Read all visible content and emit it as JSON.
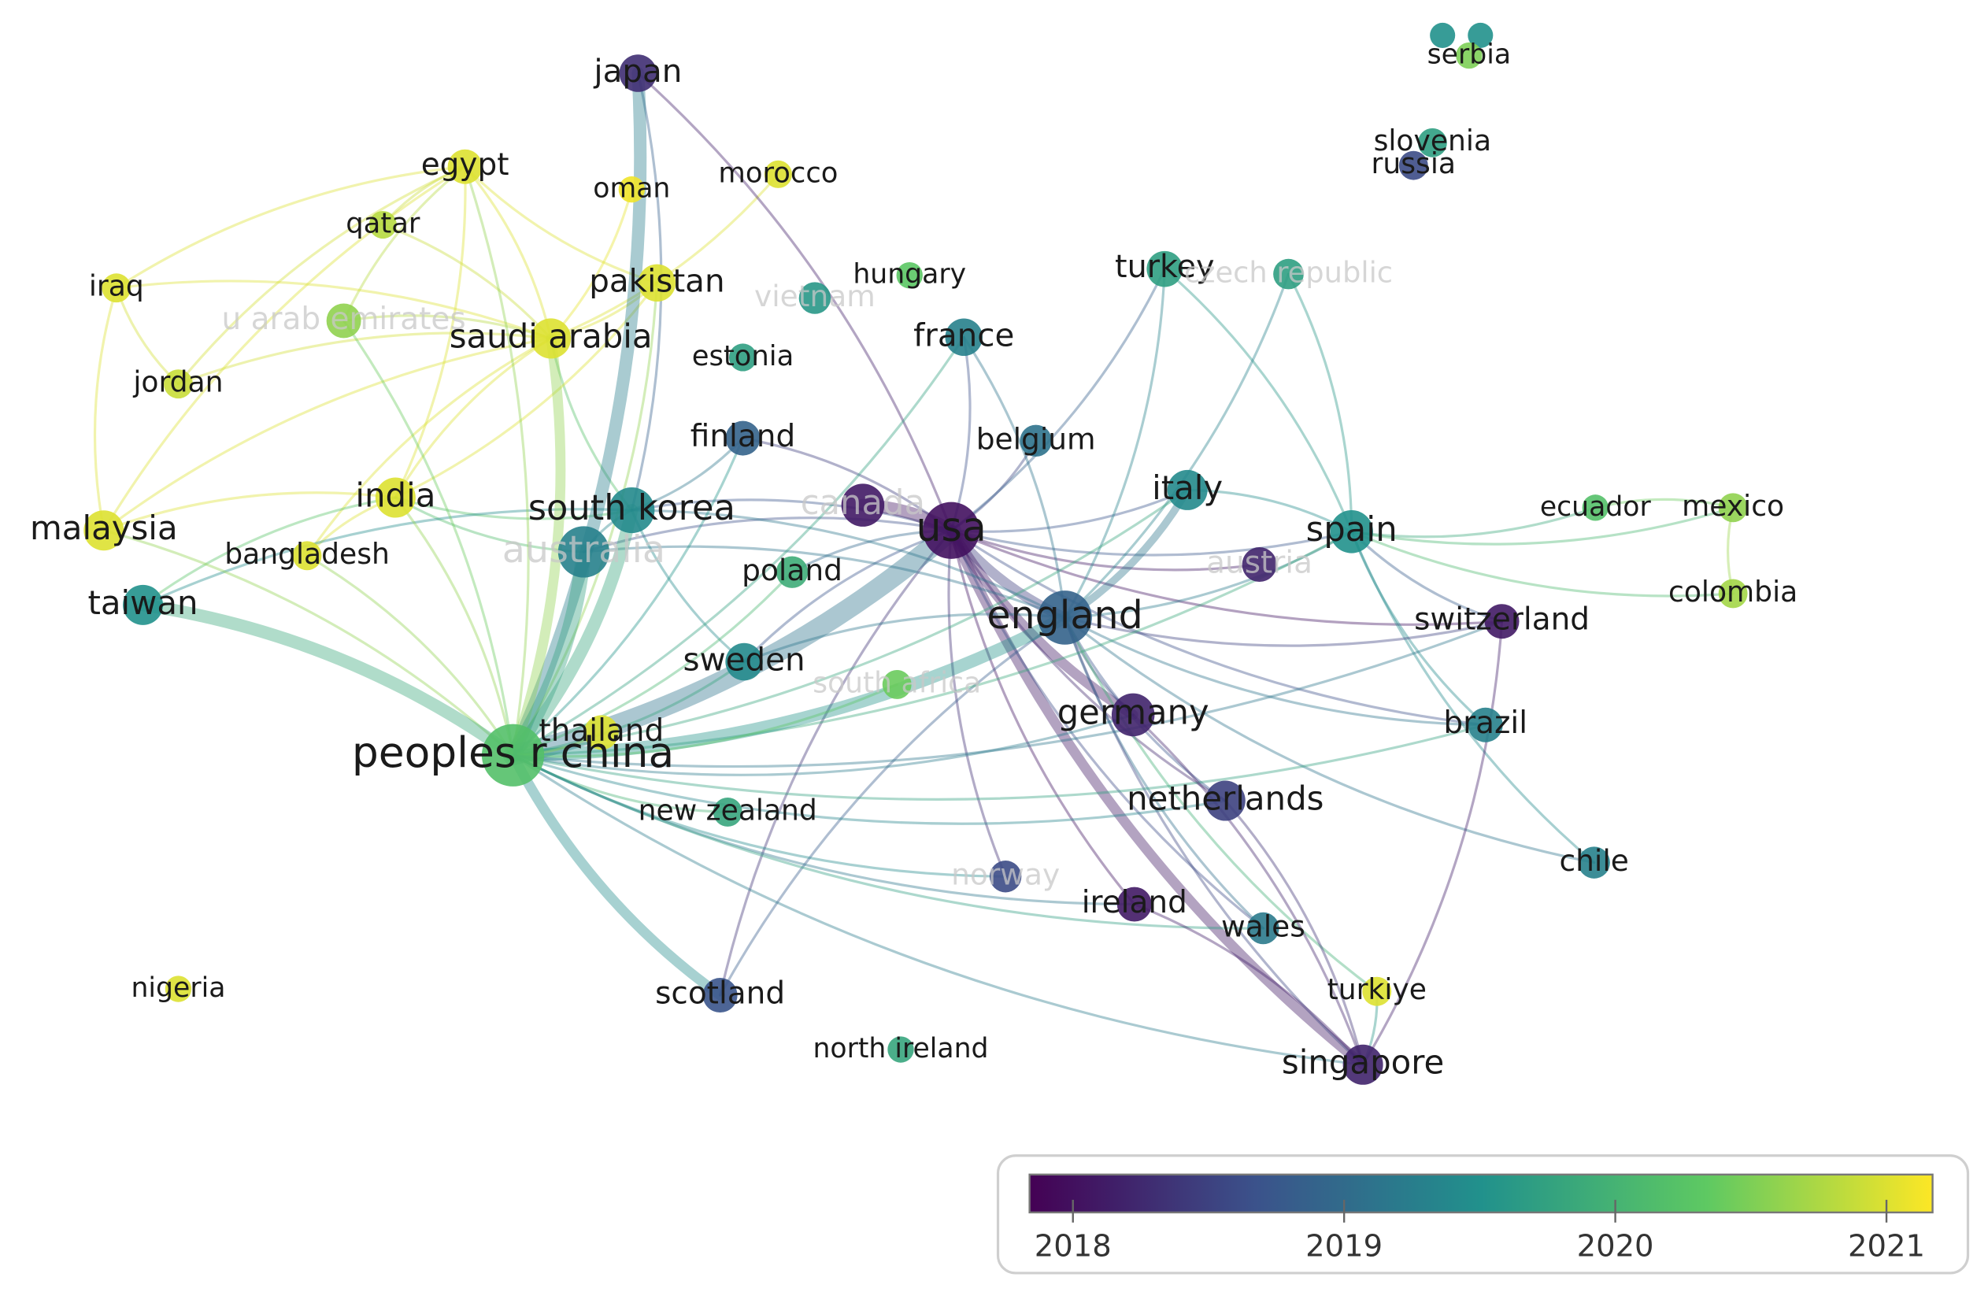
{
  "nodes": [
    {
      "label": "japan",
      "year": 2018.3,
      "weight": 16
    },
    {
      "label": "egypt",
      "year": 2021.0,
      "weight": 14
    },
    {
      "label": "oman",
      "year": 2021.1,
      "weight": 8
    },
    {
      "label": "morocco",
      "year": 2021.0,
      "weight": 9
    },
    {
      "label": "qatar",
      "year": 2020.8,
      "weight": 9
    },
    {
      "label": "iraq",
      "year": 2021.0,
      "weight": 10
    },
    {
      "label": "pakistan",
      "year": 2021.0,
      "weight": 16
    },
    {
      "label": "u arab emirates",
      "year": 2020.6,
      "weight": 14
    },
    {
      "label": "saudi arabia",
      "year": 2021.0,
      "weight": 18
    },
    {
      "label": "jordan",
      "year": 2020.9,
      "weight": 10
    },
    {
      "label": "hungary",
      "year": 2020.3,
      "weight": 8
    },
    {
      "label": "vietnam",
      "year": 2019.6,
      "weight": 12
    },
    {
      "label": "turkey",
      "year": 2019.7,
      "weight": 15
    },
    {
      "label": "czech republic",
      "year": 2019.7,
      "weight": 11
    },
    {
      "label": "estonia",
      "year": 2019.7,
      "weight": 9
    },
    {
      "label": "france",
      "year": 2019.3,
      "weight": 16
    },
    {
      "label": "finland",
      "year": 2018.9,
      "weight": 14
    },
    {
      "label": "belgium",
      "year": 2019.1,
      "weight": 12
    },
    {
      "label": "india",
      "year": 2021.0,
      "weight": 18
    },
    {
      "label": "malaysia",
      "year": 2021.0,
      "weight": 18
    },
    {
      "label": "south korea",
      "year": 2019.4,
      "weight": 22
    },
    {
      "label": "canada",
      "year": 2018.1,
      "weight": 20
    },
    {
      "label": "usa",
      "year": 2018.0,
      "weight": 30
    },
    {
      "label": "italy",
      "year": 2019.4,
      "weight": 18
    },
    {
      "label": "spain",
      "year": 2019.5,
      "weight": 20
    },
    {
      "label": "ecuador",
      "year": 2020.2,
      "weight": 8
    },
    {
      "label": "mexico",
      "year": 2020.6,
      "weight": 10
    },
    {
      "label": "bangladesh",
      "year": 2021.0,
      "weight": 10
    },
    {
      "label": "australia",
      "year": 2019.3,
      "weight": 26
    },
    {
      "label": "poland",
      "year": 2019.9,
      "weight": 12
    },
    {
      "label": "austria",
      "year": 2018.2,
      "weight": 14
    },
    {
      "label": "colombia",
      "year": 2020.7,
      "weight": 10
    },
    {
      "label": "taiwan",
      "year": 2019.5,
      "weight": 18
    },
    {
      "label": "england",
      "year": 2018.9,
      "weight": 28
    },
    {
      "label": "switzerland",
      "year": 2018.1,
      "weight": 14
    },
    {
      "label": "sweden",
      "year": 2019.4,
      "weight": 16
    },
    {
      "label": "south africa",
      "year": 2020.4,
      "weight": 10
    },
    {
      "label": "thailand",
      "year": 2021.0,
      "weight": 14
    },
    {
      "label": "germany",
      "year": 2018.2,
      "weight": 20
    },
    {
      "label": "brazil",
      "year": 2019.3,
      "weight": 14
    },
    {
      "label": "peoples r china",
      "year": 2020.2,
      "weight": 34
    },
    {
      "label": "new zealand",
      "year": 2019.8,
      "weight": 10
    },
    {
      "label": "netherlands",
      "year": 2018.5,
      "weight": 18
    },
    {
      "label": "chile",
      "year": 2019.3,
      "weight": 12
    },
    {
      "label": "norway",
      "year": 2018.6,
      "weight": 12
    },
    {
      "label": "ireland",
      "year": 2018.1,
      "weight": 14
    },
    {
      "label": "wales",
      "year": 2019.2,
      "weight": 12
    },
    {
      "label": "turkiye",
      "year": 2021.0,
      "weight": 10
    },
    {
      "label": "scotland",
      "year": 2018.7,
      "weight": 14
    },
    {
      "label": "north ireland",
      "year": 2019.8,
      "weight": 8
    },
    {
      "label": "singapore",
      "year": 2018.2,
      "weight": 18
    },
    {
      "label": "nigeria",
      "year": 2021.0,
      "weight": 8
    },
    {
      "label": "serbia",
      "year": 2020.5,
      "weight": 8
    },
    {
      "label": "slovenia",
      "year": 2019.7,
      "weight": 10
    },
    {
      "label": "russia",
      "year": 2018.6,
      "weight": 10
    }
  ],
  "colorbar": {
    "range": [
      2017.84,
      2021.17
    ],
    "ticks": [
      2018,
      2019,
      2020,
      2021
    ]
  }
}
